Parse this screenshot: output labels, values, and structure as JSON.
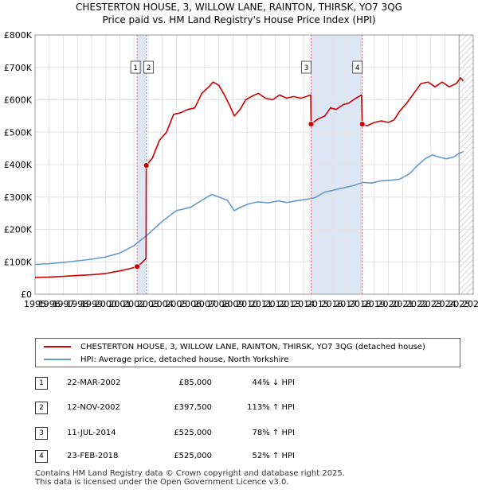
{
  "chart_data": {
    "type": "line",
    "title": "CHESTERTON HOUSE, 3, WILLOW LANE, RAINTON, THIRSK, YO7 3QG",
    "subtitle": "Price paid vs. HM Land Registry's House Price Index (HPI)",
    "xlabel": "",
    "ylabel": "",
    "xlim": [
      1995,
      2026
    ],
    "ylim": [
      0,
      800000
    ],
    "x_ticks": [
      1995,
      1996,
      1997,
      1998,
      1999,
      2000,
      2001,
      2002,
      2003,
      2004,
      2005,
      2006,
      2007,
      2008,
      2009,
      2010,
      2011,
      2012,
      2013,
      2014,
      2015,
      2016,
      2017,
      2018,
      2019,
      2020,
      2021,
      2022,
      2023,
      2024,
      2025,
      2026
    ],
    "y_tick_values": [
      0,
      100000,
      200000,
      300000,
      400000,
      500000,
      600000,
      700000,
      800000
    ],
    "y_tick_labels": [
      "£0",
      "£100K",
      "£200K",
      "£300K",
      "£400K",
      "£500K",
      "£600K",
      "£700K",
      "£800K"
    ],
    "grid": true,
    "legend_position": "below",
    "shaded_spans": [
      {
        "from": 2002.22,
        "to": 2002.87
      },
      {
        "from": 2014.53,
        "to": 2018.15
      }
    ],
    "forecast_from": 2025.0,
    "series": [
      {
        "name": "CHESTERTON HOUSE, 3, WILLOW LANE, RAINTON, THIRSK, YO7 3QG (detached house)",
        "color": "#cc0000",
        "points": [
          [
            1995.0,
            52000
          ],
          [
            1996.0,
            53000
          ],
          [
            1997.0,
            55000
          ],
          [
            1998.0,
            58000
          ],
          [
            1999.0,
            60000
          ],
          [
            2000.0,
            64000
          ],
          [
            2001.0,
            72000
          ],
          [
            2001.8,
            80000
          ],
          [
            2002.22,
            85000
          ],
          [
            2002.5,
            95000
          ],
          [
            2002.85,
            110000
          ],
          [
            2002.87,
            397500
          ],
          [
            2003.3,
            420000
          ],
          [
            2003.8,
            475000
          ],
          [
            2004.3,
            500000
          ],
          [
            2004.8,
            555000
          ],
          [
            2005.3,
            560000
          ],
          [
            2005.8,
            570000
          ],
          [
            2006.3,
            575000
          ],
          [
            2006.8,
            620000
          ],
          [
            2007.3,
            640000
          ],
          [
            2007.6,
            655000
          ],
          [
            2008.0,
            645000
          ],
          [
            2008.4,
            615000
          ],
          [
            2008.8,
            580000
          ],
          [
            2009.1,
            550000
          ],
          [
            2009.5,
            570000
          ],
          [
            2009.9,
            600000
          ],
          [
            2010.3,
            610000
          ],
          [
            2010.8,
            620000
          ],
          [
            2011.3,
            605000
          ],
          [
            2011.8,
            600000
          ],
          [
            2012.3,
            615000
          ],
          [
            2012.8,
            605000
          ],
          [
            2013.3,
            610000
          ],
          [
            2013.8,
            605000
          ],
          [
            2014.2,
            610000
          ],
          [
            2014.5,
            615000
          ],
          [
            2014.53,
            525000
          ],
          [
            2015.0,
            540000
          ],
          [
            2015.5,
            550000
          ],
          [
            2015.9,
            575000
          ],
          [
            2016.3,
            570000
          ],
          [
            2016.8,
            585000
          ],
          [
            2017.2,
            590000
          ],
          [
            2017.7,
            605000
          ],
          [
            2018.1,
            615000
          ],
          [
            2018.15,
            525000
          ],
          [
            2018.5,
            520000
          ],
          [
            2019.0,
            530000
          ],
          [
            2019.5,
            535000
          ],
          [
            2020.0,
            530000
          ],
          [
            2020.4,
            538000
          ],
          [
            2020.8,
            565000
          ],
          [
            2021.3,
            590000
          ],
          [
            2021.8,
            620000
          ],
          [
            2022.3,
            650000
          ],
          [
            2022.8,
            655000
          ],
          [
            2023.3,
            640000
          ],
          [
            2023.8,
            655000
          ],
          [
            2024.3,
            640000
          ],
          [
            2024.8,
            650000
          ],
          [
            2025.1,
            668000
          ],
          [
            2025.3,
            658000
          ]
        ]
      },
      {
        "name": "HPI: Average price, detached house, North Yorkshire",
        "color": "#6699cc",
        "points": [
          [
            1995.0,
            92000
          ],
          [
            1996.0,
            94000
          ],
          [
            1997.0,
            98000
          ],
          [
            1998.0,
            103000
          ],
          [
            1999.0,
            108000
          ],
          [
            2000.0,
            115000
          ],
          [
            2001.0,
            127000
          ],
          [
            2002.0,
            150000
          ],
          [
            2003.0,
            185000
          ],
          [
            2004.0,
            225000
          ],
          [
            2005.0,
            258000
          ],
          [
            2006.0,
            268000
          ],
          [
            2006.8,
            290000
          ],
          [
            2007.5,
            308000
          ],
          [
            2008.0,
            300000
          ],
          [
            2008.6,
            290000
          ],
          [
            2009.1,
            258000
          ],
          [
            2009.6,
            270000
          ],
          [
            2010.2,
            280000
          ],
          [
            2010.8,
            285000
          ],
          [
            2011.5,
            282000
          ],
          [
            2012.2,
            288000
          ],
          [
            2012.8,
            283000
          ],
          [
            2013.5,
            288000
          ],
          [
            2014.2,
            293000
          ],
          [
            2014.8,
            298000
          ],
          [
            2015.5,
            315000
          ],
          [
            2016.2,
            322000
          ],
          [
            2016.8,
            328000
          ],
          [
            2017.5,
            335000
          ],
          [
            2018.2,
            345000
          ],
          [
            2018.8,
            343000
          ],
          [
            2019.5,
            350000
          ],
          [
            2020.2,
            352000
          ],
          [
            2020.8,
            355000
          ],
          [
            2021.5,
            372000
          ],
          [
            2022.0,
            395000
          ],
          [
            2022.6,
            418000
          ],
          [
            2023.1,
            430000
          ],
          [
            2023.6,
            423000
          ],
          [
            2024.1,
            418000
          ],
          [
            2024.6,
            423000
          ],
          [
            2025.0,
            435000
          ],
          [
            2025.3,
            440000
          ]
        ]
      }
    ],
    "markers": [
      {
        "label": "1",
        "x": 2002.22,
        "y": 85000
      },
      {
        "label": "2",
        "x": 2002.87,
        "y": 397500
      },
      {
        "label": "3",
        "x": 2014.53,
        "y": 525000
      },
      {
        "label": "4",
        "x": 2018.15,
        "y": 525000
      }
    ]
  },
  "transactions": [
    {
      "num": "1",
      "date": "22-MAR-2002",
      "price": "£85,000",
      "hpi": "44% ↓ HPI"
    },
    {
      "num": "2",
      "date": "12-NOV-2002",
      "price": "£397,500",
      "hpi": "113% ↑ HPI"
    },
    {
      "num": "3",
      "date": "11-JUL-2014",
      "price": "£525,000",
      "hpi": "78% ↑ HPI"
    },
    {
      "num": "4",
      "date": "23-FEB-2018",
      "price": "£525,000",
      "hpi": "52% ↑ HPI"
    }
  ],
  "legend": {
    "property_label": "CHESTERTON HOUSE, 3, WILLOW LANE, RAINTON, THIRSK, YO7 3QG (detached house)",
    "hpi_label": "HPI: Average price, detached house, North Yorkshire",
    "property_color": "#cc0000",
    "hpi_color": "#6699cc"
  },
  "footer": {
    "line1": "Contains HM Land Registry data © Crown copyright and database right 2025.",
    "line2": "This data is licensed under the Open Government Licence v3.0."
  }
}
